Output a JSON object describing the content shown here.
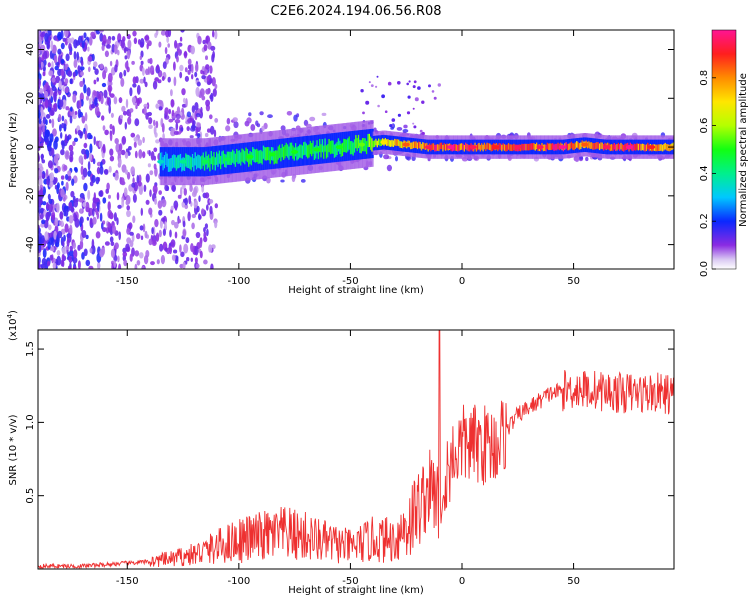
{
  "title": "C2E6.2024.194.06.56.R08",
  "chart_data": [
    {
      "type": "heatmap",
      "xlabel": "Height of straight line (km)",
      "ylabel": "Frequency (Hz)",
      "xlim": [
        -190,
        95
      ],
      "ylim": [
        -50,
        48
      ],
      "xticks": [
        -150,
        -100,
        -50,
        0,
        50
      ],
      "yticks": [
        -40,
        -20,
        0,
        20,
        40
      ],
      "ridge": {
        "x": [
          -135,
          -125,
          -115,
          -105,
          -95,
          -85,
          -75,
          -65,
          -55,
          -45,
          -35,
          -25,
          -15,
          -5,
          5,
          15,
          25,
          35,
          45,
          55,
          65,
          75,
          85,
          95
        ],
        "freq": [
          -6,
          -6,
          -6,
          -5,
          -4,
          -3,
          -2,
          -1,
          0,
          1,
          2,
          1,
          0,
          0,
          0,
          0,
          0,
          0,
          0,
          1,
          0,
          0,
          0,
          0
        ],
        "amplitude": [
          0.35,
          0.4,
          0.45,
          0.45,
          0.5,
          0.5,
          0.5,
          0.5,
          0.5,
          0.55,
          0.7,
          0.85,
          0.95,
          1.0,
          0.95,
          0.9,
          0.95,
          0.95,
          1.0,
          0.85,
          0.95,
          1.0,
          0.9,
          0.8
        ]
      },
      "colorbar": {
        "label": "Normalized spectral amplitude",
        "range": [
          0,
          1
        ],
        "ticks": [
          0.0,
          0.2,
          0.4,
          0.6,
          0.8
        ]
      }
    },
    {
      "type": "line",
      "xlabel": "Height of straight line (km)",
      "ylabel": "SNR (10 * v/v)",
      "multiplier_label": "(x10",
      "multiplier_exp": "4",
      "multiplier_close": ")",
      "xlim": [
        -190,
        95
      ],
      "ylim": [
        0,
        1.63
      ],
      "xticks": [
        -150,
        -100,
        -50,
        0,
        50
      ],
      "yticks": [
        0.5,
        1.0,
        1.5
      ],
      "color": "#ee3030",
      "x": [
        -190,
        -180,
        -170,
        -160,
        -150,
        -140,
        -130,
        -120,
        -110,
        -100,
        -90,
        -80,
        -70,
        -60,
        -50,
        -40,
        -30,
        -25,
        -20,
        -15,
        -12,
        -10,
        -8,
        -5,
        0,
        5,
        10,
        15,
        20,
        25,
        30,
        40,
        50,
        60,
        70,
        80,
        90,
        95
      ],
      "y": [
        0.02,
        0.02,
        0.02,
        0.03,
        0.04,
        0.05,
        0.07,
        0.1,
        0.15,
        0.2,
        0.22,
        0.24,
        0.22,
        0.18,
        0.15,
        0.2,
        0.2,
        0.3,
        0.4,
        0.55,
        0.5,
        0.45,
        0.6,
        0.75,
        0.85,
        0.85,
        0.85,
        0.85,
        0.95,
        1.05,
        1.1,
        1.2,
        1.23,
        1.22,
        1.2,
        1.2,
        1.2,
        1.18
      ],
      "spike": {
        "x": -10,
        "y": 1.63
      }
    }
  ]
}
